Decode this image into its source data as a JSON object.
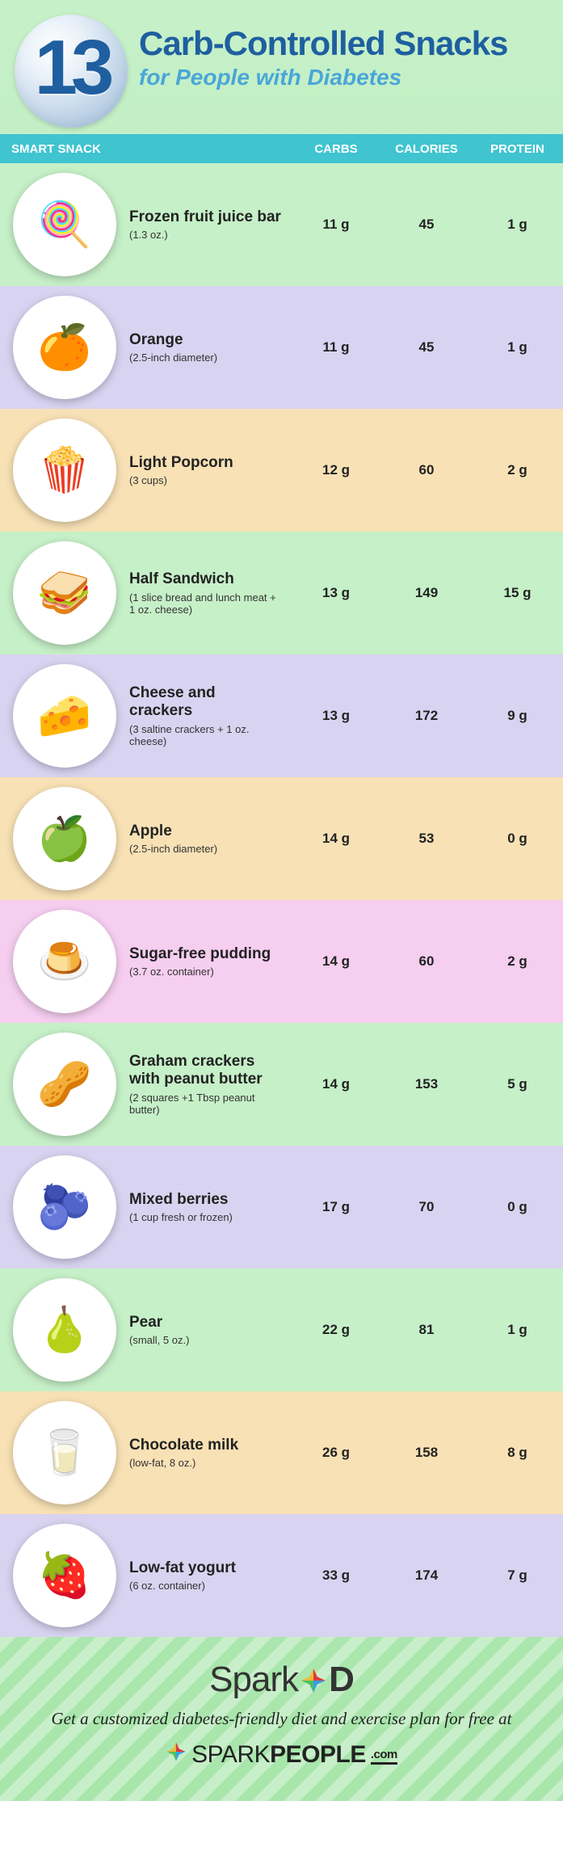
{
  "header": {
    "number": "13",
    "title_line1": "Carb-Controlled Snacks",
    "title_line2": "for People with Diabetes",
    "title_color": "#1f5fa0",
    "subtitle_color": "#4aa6d8"
  },
  "col_header": {
    "label": "SMART SNACK",
    "carbs": "CARBS",
    "calories": "CALORIES",
    "protein": "PROTEIN",
    "bg": "#3fc4d0"
  },
  "row_colors": {
    "green": "#c6f0c8",
    "purple": "#d8d3f0",
    "orange": "#f8e1b5",
    "pink": "#f6cef0"
  },
  "snacks": [
    {
      "name": "Frozen fruit juice bar",
      "portion": "(1.3 oz.)",
      "carbs": "11 g",
      "calories": "45",
      "protein": "1 g",
      "bg": "green",
      "emoji": "🍭"
    },
    {
      "name": "Orange",
      "portion": "(2.5-inch diameter)",
      "carbs": "11 g",
      "calories": "45",
      "protein": "1 g",
      "bg": "purple",
      "emoji": "🍊"
    },
    {
      "name": "Light Popcorn",
      "portion": "(3 cups)",
      "carbs": "12 g",
      "calories": "60",
      "protein": "2 g",
      "bg": "orange",
      "emoji": "🍿"
    },
    {
      "name": "Half Sandwich",
      "portion": "(1 slice bread and lunch meat + 1 oz. cheese)",
      "carbs": "13 g",
      "calories": "149",
      "protein": "15 g",
      "bg": "green",
      "emoji": "🥪"
    },
    {
      "name": "Cheese and crackers",
      "portion": "(3 saltine crackers + 1 oz. cheese)",
      "carbs": "13 g",
      "calories": "172",
      "protein": "9 g",
      "bg": "purple",
      "emoji": "🧀"
    },
    {
      "name": "Apple",
      "portion": "(2.5-inch diameter)",
      "carbs": "14 g",
      "calories": "53",
      "protein": "0 g",
      "bg": "orange",
      "emoji": "🍏"
    },
    {
      "name": "Sugar-free pudding",
      "portion": "(3.7 oz. container)",
      "carbs": "14 g",
      "calories": "60",
      "protein": "2 g",
      "bg": "pink",
      "emoji": "🍮"
    },
    {
      "name": "Graham crackers with peanut butter",
      "portion": "(2 squares +1 Tbsp peanut butter)",
      "carbs": "14 g",
      "calories": "153",
      "protein": "5 g",
      "bg": "green",
      "emoji": "🥜"
    },
    {
      "name": "Mixed berries",
      "portion": "(1 cup fresh or frozen)",
      "carbs": "17 g",
      "calories": "70",
      "protein": "0 g",
      "bg": "purple",
      "emoji": "🫐"
    },
    {
      "name": "Pear",
      "portion": "(small, 5 oz.)",
      "carbs": "22 g",
      "calories": "81",
      "protein": "1 g",
      "bg": "green",
      "emoji": "🍐"
    },
    {
      "name": "Chocolate milk",
      "portion": "(low-fat, 8 oz.)",
      "carbs": "26 g",
      "calories": "158",
      "protein": "8 g",
      "bg": "orange",
      "emoji": "🥛"
    },
    {
      "name": "Low-fat yogurt",
      "portion": "(6 oz. container)",
      "carbs": "33 g",
      "calories": "174",
      "protein": "7 g",
      "bg": "purple",
      "emoji": "🍓"
    }
  ],
  "footer": {
    "brand1_a": "Spark",
    "brand1_b": "D",
    "tagline": "Get a customized diabetes-friendly diet and exercise plan for free at",
    "brand2_a": "SPARK",
    "brand2_b": "PEOPLE",
    "brand2_c": ".com"
  }
}
